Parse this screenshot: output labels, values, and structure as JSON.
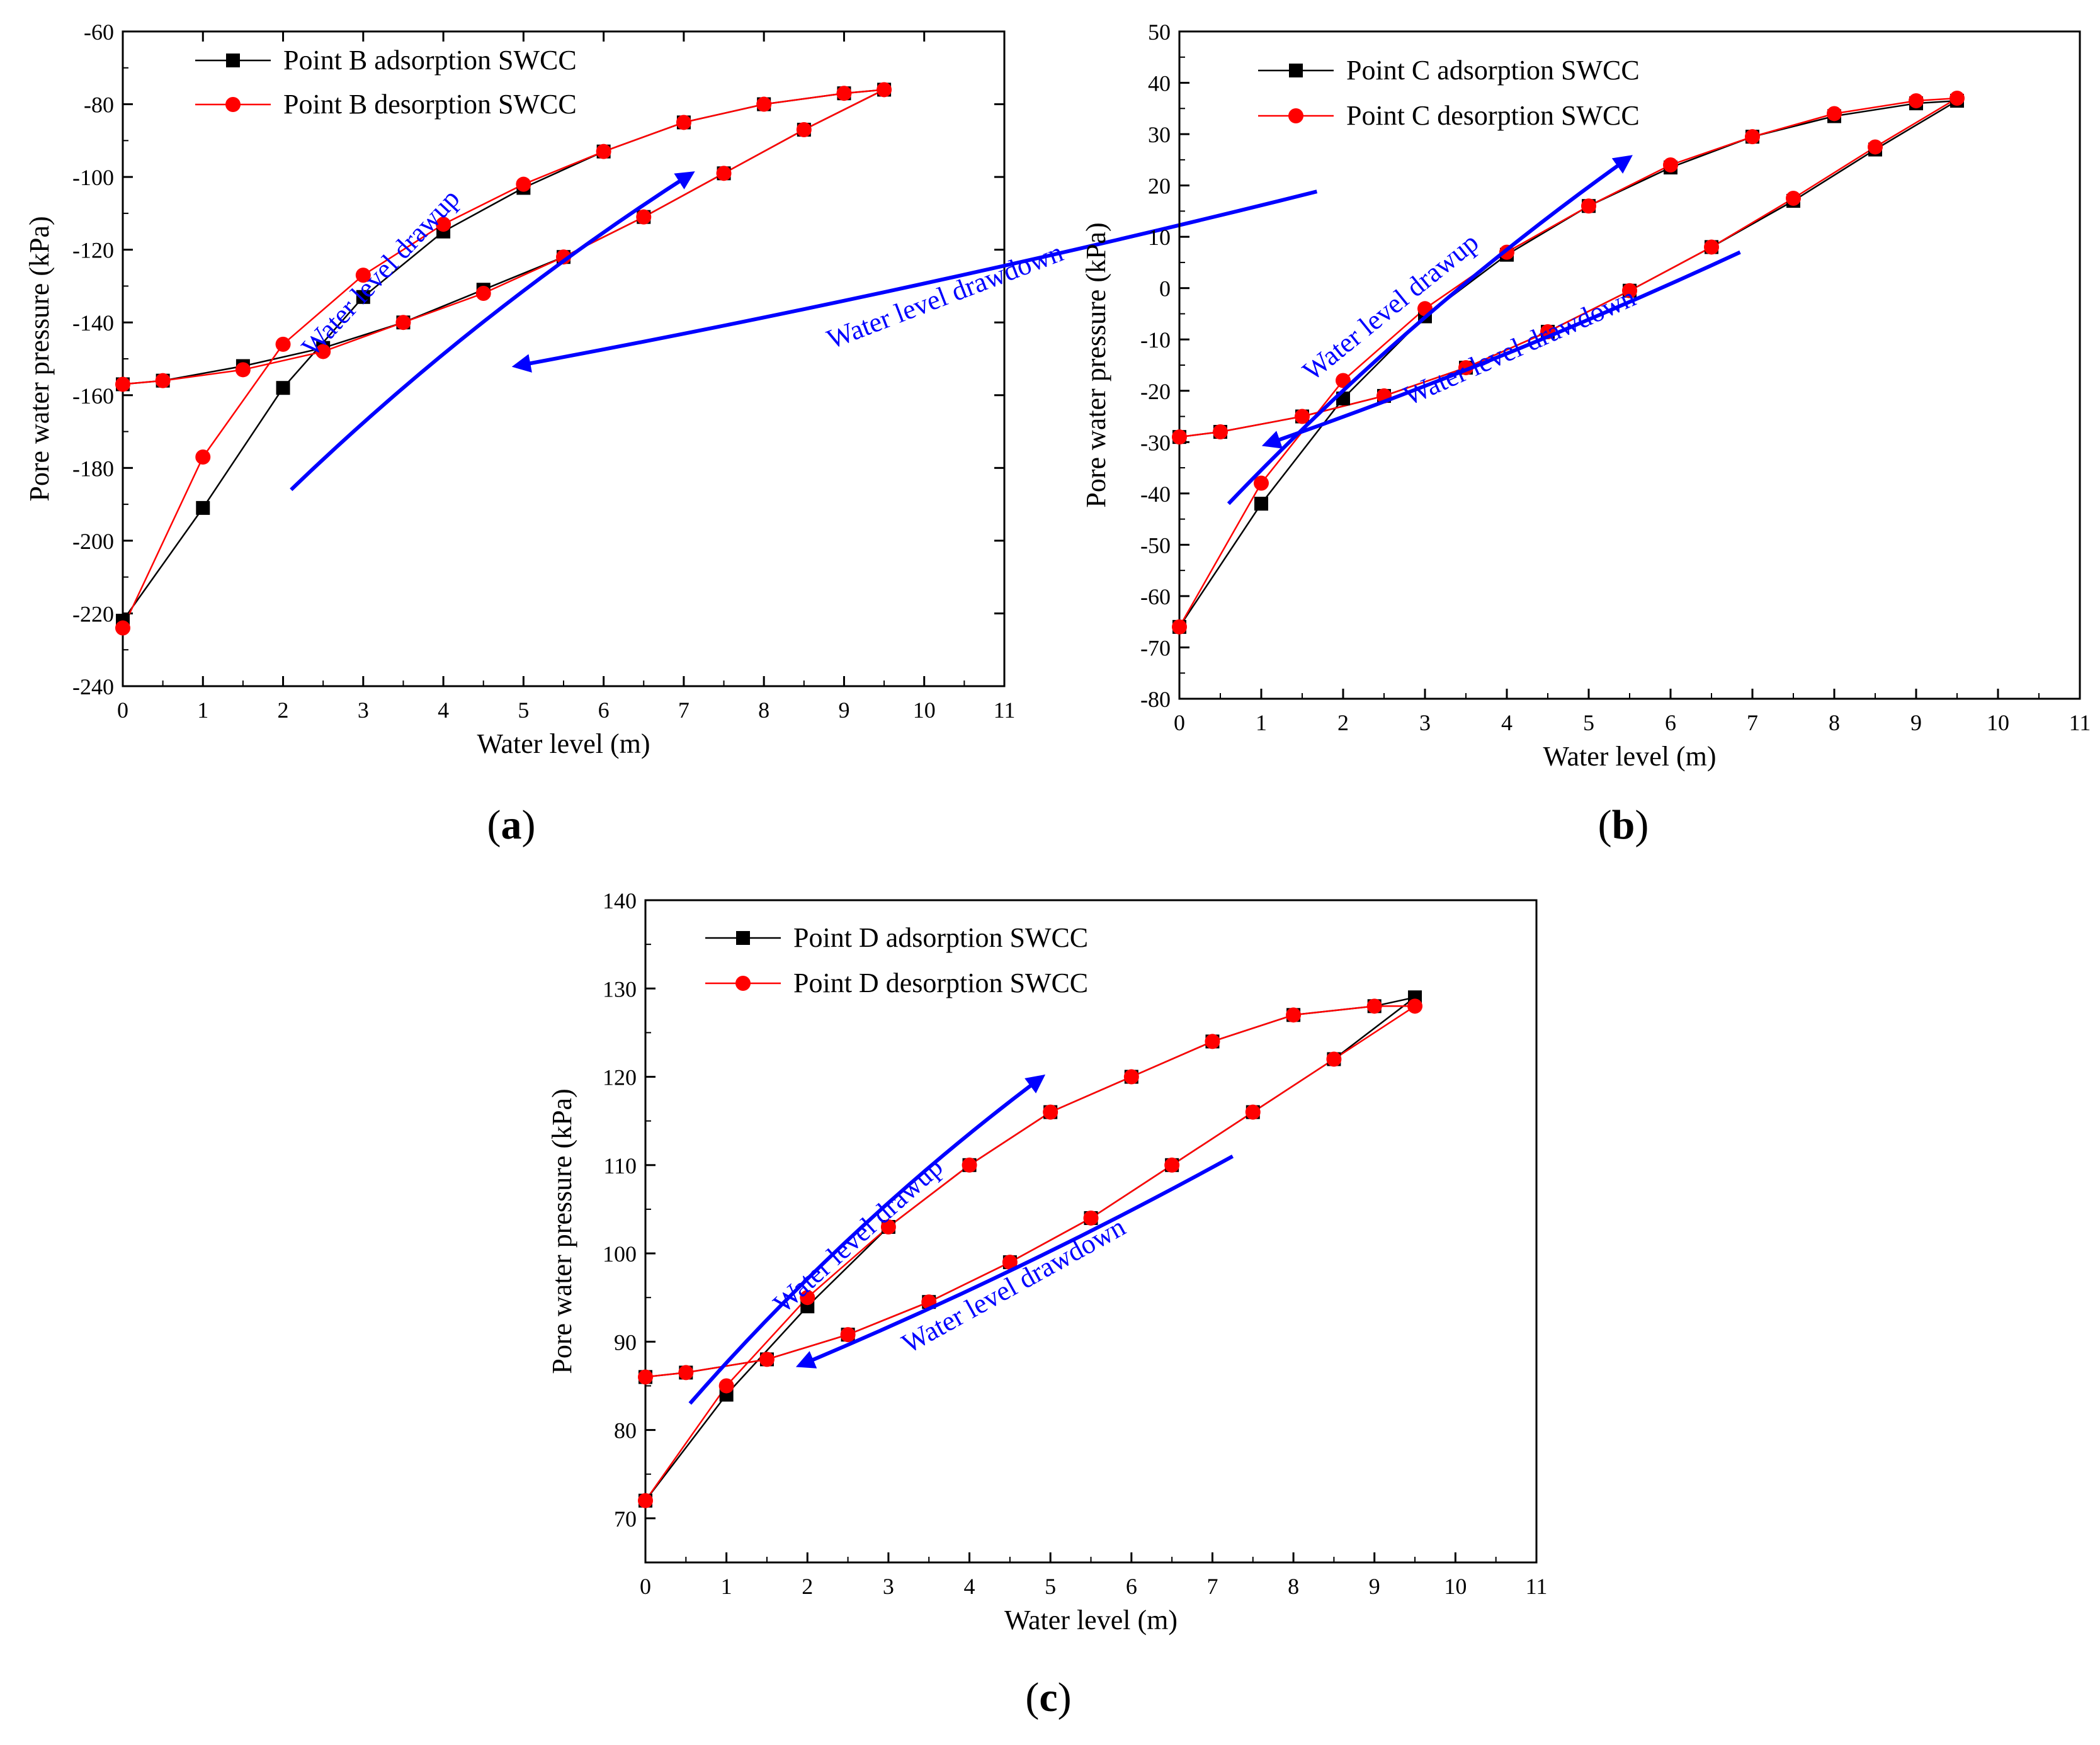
{
  "colors": {
    "adsorption": "#000000",
    "desorption": "#ff0000",
    "arrow": "#0000ff",
    "axis": "#000000"
  },
  "chart_data": [
    {
      "type": "line",
      "panel_label": "(a)",
      "panel_letter": "a",
      "xlabel": "Water level (m)",
      "ylabel": "Pore water pressure (kPa)",
      "xlim": [
        0,
        11
      ],
      "ylim": [
        -240,
        -60
      ],
      "xticks": [
        0,
        1,
        2,
        3,
        4,
        5,
        6,
        7,
        8,
        9,
        10,
        11
      ],
      "yticks": [
        -240,
        -220,
        -200,
        -180,
        -160,
        -140,
        -120,
        -100,
        -80,
        -60
      ],
      "legend_position": "top-left",
      "series": [
        {
          "name": "Point B adsorption SWCC",
          "marker": "square",
          "color": "#000000",
          "x": [
            0,
            1,
            2,
            3,
            4,
            5,
            6,
            7,
            8,
            9,
            9.5,
            8.5,
            7.5,
            6.5,
            5.5,
            4.5,
            3.5,
            2.5,
            1.5,
            0.5,
            0
          ],
          "y": [
            -222,
            -191,
            -158,
            -133,
            -115,
            -103,
            -93,
            -85,
            -80,
            -77,
            -76,
            -87,
            -99,
            -111,
            -122,
            -131,
            -140,
            -147,
            -152,
            -156,
            -157
          ]
        },
        {
          "name": "Point B desorption SWCC",
          "marker": "circle",
          "color": "#ff0000",
          "x": [
            0,
            1,
            2,
            3,
            4,
            5,
            6,
            7,
            8,
            9,
            9.5,
            8.5,
            7.5,
            6.5,
            5.5,
            4.5,
            3.5,
            2.5,
            1.5,
            0.5,
            0
          ],
          "y": [
            -224,
            -177,
            -146,
            -127,
            -113,
            -102,
            -93,
            -85,
            -80,
            -77,
            -76,
            -87,
            -99,
            -111,
            -122,
            -132,
            -140,
            -148,
            -153,
            -156,
            -157
          ]
        }
      ],
      "annotations": [
        {
          "text": "Water level drawup",
          "rotation": -47
        },
        {
          "text": "Water level drawdown",
          "rotation": -21
        }
      ]
    },
    {
      "type": "line",
      "panel_label": "(b)",
      "panel_letter": "b",
      "xlabel": "Water level (m)",
      "ylabel": "Pore water pressure (kPa)",
      "xlim": [
        0,
        11
      ],
      "ylim": [
        -80,
        50
      ],
      "xticks": [
        0,
        1,
        2,
        3,
        4,
        5,
        6,
        7,
        8,
        9,
        10,
        11
      ],
      "yticks": [
        -80,
        -70,
        -60,
        -50,
        -40,
        -30,
        -20,
        -10,
        0,
        10,
        20,
        30,
        40,
        50
      ],
      "legend_position": "top-left",
      "series": [
        {
          "name": "Point C adsorption SWCC",
          "marker": "square",
          "color": "#000000",
          "x": [
            0,
            1,
            2,
            3,
            4,
            5,
            6,
            7,
            8,
            9,
            9.5,
            8.5,
            7.5,
            6.5,
            5.5,
            4.5,
            3.5,
            2.5,
            1.5,
            0.5,
            0
          ],
          "y": [
            -66,
            -42,
            -21.5,
            -5.5,
            6.5,
            16,
            23.5,
            29.5,
            33.5,
            36,
            36.5,
            27,
            17,
            8,
            -0.5,
            -8.5,
            -15.5,
            -21,
            -25,
            -28,
            -29
          ]
        },
        {
          "name": "Point C desorption SWCC",
          "marker": "circle",
          "color": "#ff0000",
          "x": [
            0,
            1,
            2,
            3,
            4,
            5,
            6,
            7,
            8,
            9,
            9.5,
            8.5,
            7.5,
            6.5,
            5.5,
            4.5,
            3.5,
            2.5,
            1.5,
            0.5,
            0
          ],
          "y": [
            -66,
            -38,
            -18,
            -4,
            7,
            16,
            24,
            29.5,
            34,
            36.5,
            37,
            27.5,
            17.5,
            8,
            -0.5,
            -8.5,
            -15.5,
            -21,
            -25,
            -28,
            -29
          ]
        }
      ],
      "annotations": [
        {
          "text": "Water level drawup",
          "rotation": -39
        },
        {
          "text": "Water level drawdown",
          "rotation": -24
        }
      ]
    },
    {
      "type": "line",
      "panel_label": "(c)",
      "panel_letter": "c",
      "xlabel": "Water level (m)",
      "ylabel": "Pore water pressure (kPa)",
      "xlim": [
        0,
        11
      ],
      "ylim": [
        65,
        140
      ],
      "xticks": [
        0,
        1,
        2,
        3,
        4,
        5,
        6,
        7,
        8,
        9,
        10,
        11
      ],
      "yticks": [
        70,
        80,
        90,
        100,
        110,
        120,
        130,
        140
      ],
      "legend_position": "top-left",
      "series": [
        {
          "name": "Point D adsorption SWCC",
          "marker": "square",
          "color": "#000000",
          "x": [
            0,
            1,
            2,
            3,
            4,
            5,
            6,
            7,
            8,
            9,
            9.5,
            8.5,
            7.5,
            6.5,
            5.5,
            4.5,
            3.5,
            2.5,
            1.5,
            0.5,
            0
          ],
          "y": [
            72,
            84,
            94,
            103,
            110,
            116,
            120,
            124,
            127,
            128,
            129,
            122,
            116,
            110,
            104,
            99,
            94.5,
            90.8,
            88,
            86.5,
            86
          ]
        },
        {
          "name": "Point D desorption SWCC",
          "marker": "circle",
          "color": "#ff0000",
          "x": [
            0,
            1,
            2,
            3,
            4,
            5,
            6,
            7,
            8,
            9,
            9.5,
            8.5,
            7.5,
            6.5,
            5.5,
            4.5,
            3.5,
            2.5,
            1.5,
            0.5,
            0
          ],
          "y": [
            72,
            85,
            95,
            103,
            110,
            116,
            120,
            124,
            127,
            128,
            128,
            122,
            116,
            110,
            104,
            99,
            94.5,
            90.8,
            88,
            86.5,
            86
          ]
        }
      ],
      "annotations": [
        {
          "text": "Water level drawup",
          "rotation": -42
        },
        {
          "text": "Water level drawdown",
          "rotation": -29
        }
      ]
    }
  ]
}
